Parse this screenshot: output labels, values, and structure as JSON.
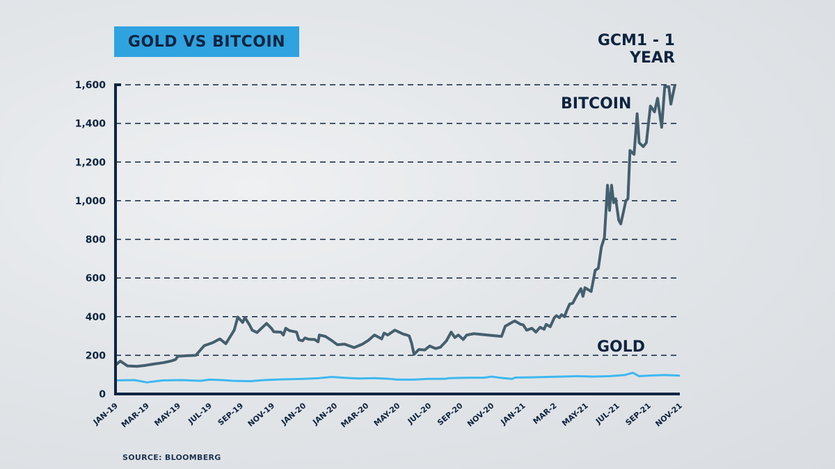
{
  "header": {
    "title": "GOLD VS BITCOIN",
    "subtitle": "GCM1 - 1 YEAR"
  },
  "footer": {
    "source": "SOURCE: BLOOMBERG"
  },
  "colors": {
    "title_bg": "#2fa3df",
    "text": "#0e2440",
    "bitcoin_line": "#445f6e",
    "gold_line": "#3db8f0",
    "axis": "#0e2440"
  },
  "chart_data": {
    "type": "line",
    "title": "GOLD VS BITCOIN",
    "subtitle": "GCM1 - 1 YEAR",
    "xlabel": "",
    "ylabel": "",
    "ylim": [
      0,
      1600
    ],
    "yticks": [
      0,
      200,
      400,
      600,
      800,
      1000,
      1200,
      1400,
      1600
    ],
    "ytick_labels": [
      "0",
      "200",
      "400",
      "600",
      "800",
      "1,000",
      "1,200",
      "1,400",
      "1,600"
    ],
    "grid": "horizontal dashed",
    "x_categories": [
      "JAN-19",
      "MAR-19",
      "MAY-19",
      "JUL-19",
      "SEP-19",
      "NOV-19",
      "JAN-20",
      "JAN-20",
      "MAR-20",
      "MAY-20",
      "JUL-20",
      "SEP-20",
      "NOV-20",
      "JAN-21",
      "MAR-2",
      "MAY-21",
      "JUL-21",
      "SEP-21",
      "NOV-21"
    ],
    "x_range_months": [
      0,
      34
    ],
    "series": [
      {
        "name": "BITCOIN",
        "label": "BITCOIN",
        "points": [
          [
            0,
            150
          ],
          [
            0.4,
            170
          ],
          [
            1,
            145
          ],
          [
            1.8,
            143
          ],
          [
            2.5,
            148
          ],
          [
            3.2,
            155
          ],
          [
            4,
            162
          ],
          [
            4.6,
            170
          ],
          [
            5,
            178
          ],
          [
            5.2,
            195
          ],
          [
            6,
            198
          ],
          [
            6.7,
            200
          ],
          [
            7.4,
            250
          ],
          [
            8.1,
            265
          ],
          [
            8.7,
            285
          ],
          [
            9.2,
            260
          ],
          [
            9.9,
            330
          ],
          [
            10.2,
            398
          ],
          [
            10.6,
            370
          ],
          [
            10.8,
            395
          ],
          [
            11.2,
            355
          ],
          [
            11.4,
            330
          ],
          [
            11.8,
            318
          ],
          [
            12.6,
            365
          ],
          [
            13,
            340
          ],
          [
            13.2,
            322
          ],
          [
            13.8,
            320
          ],
          [
            14,
            305
          ],
          [
            14.2,
            340
          ],
          [
            14.5,
            328
          ],
          [
            15.1,
            320
          ],
          [
            15.3,
            280
          ],
          [
            15.6,
            275
          ],
          [
            15.8,
            290
          ],
          [
            16.1,
            283
          ],
          [
            16.6,
            282
          ],
          [
            16.9,
            270
          ],
          [
            17,
            305
          ],
          [
            17.5,
            298
          ],
          [
            18,
            278
          ],
          [
            18.5,
            255
          ],
          [
            19.1,
            258
          ],
          [
            19.9,
            240
          ],
          [
            20.6,
            258
          ],
          [
            21.1,
            278
          ],
          [
            21.6,
            305
          ],
          [
            22.2,
            285
          ],
          [
            22.4,
            315
          ],
          [
            22.7,
            305
          ],
          [
            23.3,
            330
          ],
          [
            24,
            310
          ],
          [
            24.3,
            305
          ],
          [
            24.5,
            300
          ],
          [
            24.7,
            262
          ],
          [
            24.9,
            205
          ],
          [
            25.3,
            230
          ],
          [
            25.8,
            228
          ],
          [
            26.2,
            248
          ],
          [
            26.7,
            235
          ],
          [
            27.1,
            242
          ],
          [
            27.6,
            275
          ],
          [
            28,
            320
          ],
          [
            28.3,
            292
          ],
          [
            28.6,
            305
          ],
          [
            29,
            282
          ],
          [
            29.3,
            305
          ],
          [
            29.9,
            312
          ],
          [
            31.5,
            302
          ],
          [
            32.2,
            298
          ],
          [
            32.5,
            350
          ],
          [
            33,
            368
          ],
          [
            33.3,
            378
          ],
          [
            33.8,
            360
          ],
          [
            34,
            358
          ],
          [
            34.3,
            330
          ]
        ]
      },
      {
        "name": "BITCOIN_RISE",
        "note": "continuation of BITCOIN series (same line)",
        "points": [
          [
            34.3,
            330
          ]
        ]
      },
      {
        "name": "GOLD",
        "label": "GOLD",
        "points": [
          [
            0,
            70
          ],
          [
            1.2,
            72
          ],
          [
            2,
            60
          ],
          [
            3,
            70
          ],
          [
            4.2,
            72
          ],
          [
            5.4,
            68
          ],
          [
            6,
            74
          ],
          [
            6.8,
            72
          ],
          [
            7.5,
            68
          ],
          [
            8.6,
            66
          ],
          [
            9.5,
            72
          ],
          [
            10.5,
            75
          ],
          [
            12,
            78
          ],
          [
            13,
            82
          ],
          [
            13.8,
            88
          ],
          [
            14.5,
            84
          ],
          [
            15.5,
            80
          ],
          [
            16.5,
            82
          ],
          [
            17.5,
            78
          ],
          [
            18,
            74
          ],
          [
            19,
            74
          ],
          [
            20,
            78
          ],
          [
            21,
            78
          ],
          [
            21.3,
            82
          ],
          [
            22.5,
            84
          ],
          [
            23.5,
            84
          ],
          [
            24,
            90
          ],
          [
            24.5,
            84
          ],
          [
            25,
            80
          ],
          [
            25.3,
            78
          ],
          [
            25.5,
            85
          ],
          [
            26.5,
            86
          ],
          [
            27.5,
            88
          ],
          [
            28.5,
            90
          ],
          [
            29.5,
            92
          ],
          [
            30.5,
            90
          ],
          [
            31.5,
            92
          ],
          [
            32.5,
            98
          ],
          [
            33,
            110
          ],
          [
            33.4,
            92
          ],
          [
            34,
            95
          ],
          [
            35,
            98
          ],
          [
            36,
            95
          ]
        ]
      }
    ]
  }
}
